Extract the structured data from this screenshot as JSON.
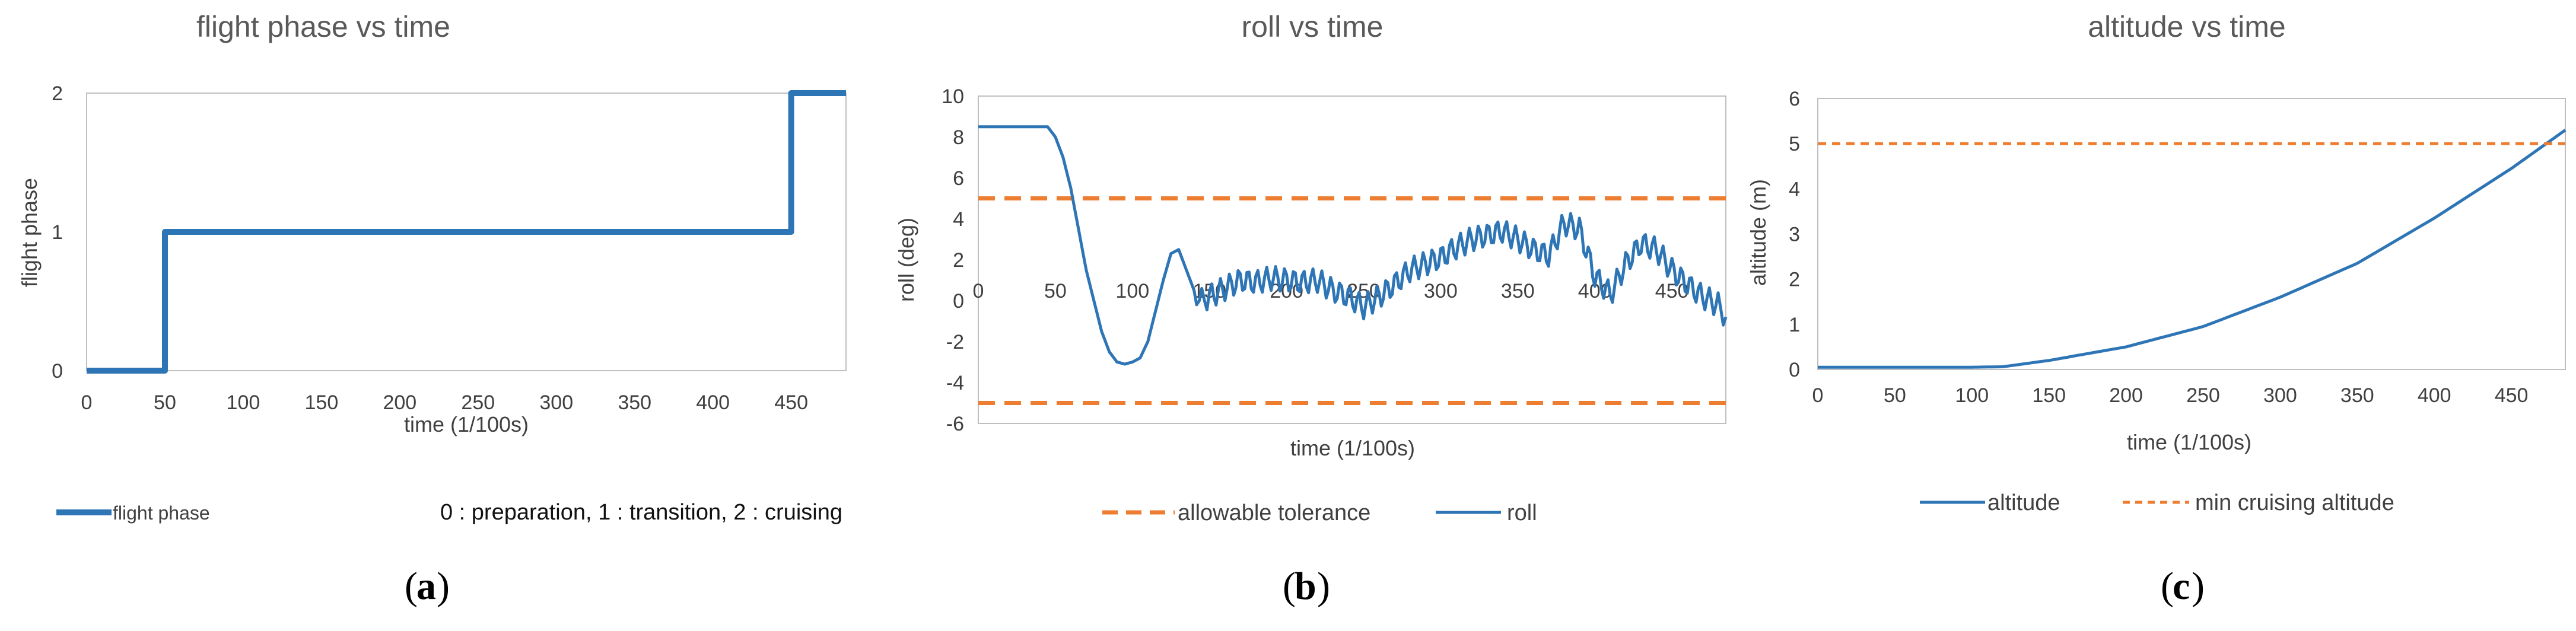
{
  "chart_data": [
    {
      "type": "line",
      "title": "flight phase vs time",
      "xlabel": "time (1/100s)",
      "ylabel": "flight phase",
      "xlim": [
        0,
        485
      ],
      "ylim": [
        0,
        2
      ],
      "xticks": [
        "0",
        "50",
        "100",
        "150",
        "200",
        "250",
        "300",
        "350",
        "400",
        "450"
      ],
      "yticks": [
        "0",
        "1",
        "2"
      ],
      "series": [
        {
          "name": "flight phase",
          "color": "#2e75b6",
          "x": [
            0,
            50,
            50,
            450,
            450,
            485
          ],
          "y": [
            0,
            0,
            1,
            1,
            2,
            2
          ]
        }
      ],
      "legend_note": "0 : preparation, 1 : transition, 2 : cruising",
      "caption": "a"
    },
    {
      "type": "line",
      "title": "roll vs time",
      "xlabel": "time (1/100s)",
      "ylabel": "roll (deg)",
      "xlim": [
        0,
        485
      ],
      "ylim": [
        -6,
        10
      ],
      "xticks": [
        "0",
        "50",
        "100",
        "150",
        "200",
        "250",
        "300",
        "350",
        "400",
        "450"
      ],
      "yticks": [
        "-6",
        "-4",
        "-2",
        "0",
        "2",
        "4",
        "6",
        "8",
        "10"
      ],
      "series": [
        {
          "name": "allowable tolerance",
          "color": "#ed7d31",
          "dashed": true,
          "x": [
            0,
            485
          ],
          "y": [
            5,
            5
          ]
        },
        {
          "name": "allowable tolerance",
          "color": "#ed7d31",
          "dashed": true,
          "x": [
            0,
            485
          ],
          "y": [
            -5,
            -5
          ]
        },
        {
          "name": "roll",
          "color": "#2e75b6",
          "x": [
            0,
            40,
            45,
            50,
            55,
            60,
            65,
            70,
            75,
            80,
            85,
            90,
            95,
            100,
            105,
            110,
            115,
            120,
            125,
            130,
            135,
            140,
            145,
            150,
            160,
            170,
            180,
            190,
            200,
            210,
            220,
            230,
            240,
            250,
            260,
            270,
            280,
            290,
            300,
            310,
            320,
            330,
            340,
            350,
            360,
            370,
            380,
            390,
            400,
            410,
            420,
            430,
            440,
            450,
            460,
            470,
            480,
            485
          ],
          "y": [
            8.5,
            8.5,
            8.5,
            8.0,
            7.0,
            5.5,
            3.5,
            1.5,
            0.0,
            -1.5,
            -2.5,
            -3.0,
            -3.1,
            -3.0,
            -2.8,
            -2.0,
            -0.5,
            1.0,
            2.3,
            2.5,
            1.5,
            0.5,
            0.0,
            0.2,
            0.6,
            1.0,
            0.9,
            1.1,
            1.0,
            0.9,
            1.0,
            0.5,
            0.2,
            -0.3,
            0.2,
            0.8,
            1.5,
            1.8,
            2.1,
            2.6,
            3.0,
            3.2,
            3.4,
            3.0,
            2.5,
            2.2,
            3.8,
            3.5,
            1.2,
            0.3,
            1.8,
            2.8,
            2.5,
            1.5,
            0.8,
            0.2,
            -0.2,
            -0.8
          ],
          "oscillation_amplitude": 0.6
        }
      ],
      "caption": "b"
    },
    {
      "type": "line",
      "title": "altitude vs time",
      "xlabel": "time (1/100s)",
      "ylabel": "altitude (m)",
      "xlim": [
        0,
        485
      ],
      "ylim": [
        0,
        6
      ],
      "xticks": [
        "0",
        "50",
        "100",
        "150",
        "200",
        "250",
        "300",
        "350",
        "400",
        "450"
      ],
      "yticks": [
        "0",
        "1",
        "2",
        "3",
        "4",
        "5",
        "6"
      ],
      "series": [
        {
          "name": "altitude",
          "color": "#2e75b6",
          "x": [
            0,
            50,
            100,
            120,
            150,
            200,
            250,
            300,
            350,
            400,
            450,
            485
          ],
          "y": [
            0.05,
            0.05,
            0.05,
            0.06,
            0.2,
            0.5,
            0.95,
            1.6,
            2.35,
            3.35,
            4.45,
            5.3
          ]
        },
        {
          "name": "min cruising altitude",
          "color": "#ed7d31",
          "dashed": true,
          "x": [
            0,
            485
          ],
          "y": [
            5,
            5
          ]
        }
      ],
      "caption": "c"
    }
  ],
  "legends": {
    "a": [
      "flight phase"
    ],
    "b": [
      "allowable tolerance",
      "roll"
    ],
    "c": [
      "altitude",
      "min cruising altitude"
    ]
  },
  "colors": {
    "blue": "#2e75b6",
    "orange": "#ed7d31",
    "frame": "#bfbfbf"
  }
}
